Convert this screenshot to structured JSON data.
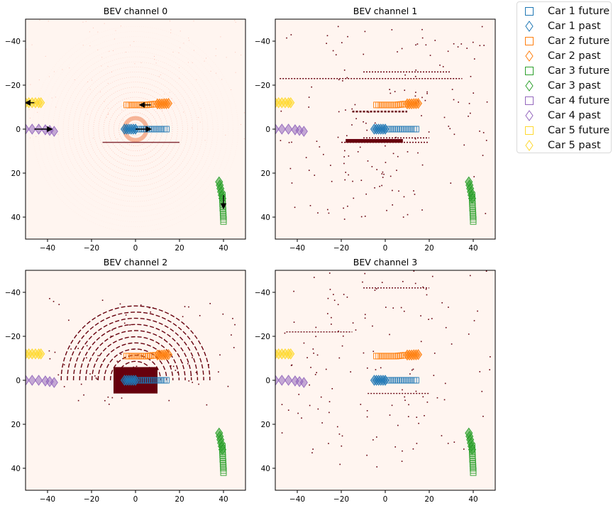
{
  "chart_data": [
    {
      "type": "scatter",
      "title": "BEV channel 0",
      "xlim": [
        -50,
        50
      ],
      "ylim": [
        -50,
        50
      ],
      "y_inverted": true,
      "xticks": [
        -40,
        -20,
        0,
        20,
        40
      ],
      "yticks": [
        -40,
        -20,
        0,
        20,
        40
      ],
      "background": "BEV occupancy heatmap (Reds colormap): concentric lidar rings around the ego car at (0, 0), bright center",
      "arrows": [
        {
          "from": [
            0,
            0
          ],
          "to": [
            7,
            0
          ]
        },
        {
          "from": [
            7,
            -11
          ],
          "to": [
            2,
            -11
          ]
        },
        {
          "from": [
            -46,
            0
          ],
          "to": [
            -38,
            0
          ]
        },
        {
          "from": [
            40,
            30
          ],
          "to": [
            40,
            36
          ]
        },
        {
          "from": [
            -46,
            -12
          ],
          "to": [
            -50,
            -12
          ]
        }
      ]
    },
    {
      "type": "scatter",
      "title": "BEV channel 1",
      "xlim": [
        -50,
        50
      ],
      "ylim": [
        -50,
        50
      ],
      "y_inverted": true,
      "xticks": [
        -40,
        -20,
        0,
        20,
        40
      ],
      "yticks": [
        -40,
        -20,
        0,
        20,
        40
      ],
      "background": "sparse dark occupancy points forming road and building edges"
    },
    {
      "type": "scatter",
      "title": "BEV channel 2",
      "xlim": [
        -50,
        50
      ],
      "ylim": [
        -50,
        50
      ],
      "y_inverted": true,
      "xticks": [
        -40,
        -20,
        0,
        20,
        40
      ],
      "yticks": [
        -40,
        -20,
        0,
        20,
        40
      ],
      "background": "dark concentric lidar ring arcs around the ego car"
    },
    {
      "type": "scatter",
      "title": "BEV channel 3",
      "xlim": [
        -50,
        50
      ],
      "ylim": [
        -50,
        50
      ],
      "y_inverted": true,
      "xticks": [
        -40,
        -20,
        0,
        20,
        40
      ],
      "yticks": [
        -40,
        -20,
        0,
        20,
        40
      ],
      "background": "sparse dark occupancy points"
    }
  ],
  "trajectories": [
    {
      "name": "Car 1",
      "color": "#1f77b4",
      "past": [
        [
          -5,
          0
        ],
        [
          -4,
          0
        ],
        [
          -3,
          0
        ],
        [
          -2,
          0
        ],
        [
          -1,
          0
        ],
        [
          0,
          0
        ]
      ],
      "future": [
        [
          1,
          0
        ],
        [
          2,
          0
        ],
        [
          3,
          0
        ],
        [
          4,
          0
        ],
        [
          5,
          0
        ],
        [
          6,
          0
        ],
        [
          7,
          0
        ],
        [
          8,
          0
        ],
        [
          9,
          0
        ],
        [
          10,
          0
        ],
        [
          11,
          0
        ],
        [
          12,
          0
        ],
        [
          13,
          0
        ],
        [
          14,
          0
        ]
      ]
    },
    {
      "name": "Car 2",
      "color": "#ff7f0e",
      "past": [
        [
          10,
          -11.5
        ],
        [
          11,
          -11.5
        ],
        [
          12,
          -11.5
        ],
        [
          13,
          -11.6
        ],
        [
          14,
          -11.6
        ],
        [
          15,
          -11.7
        ]
      ],
      "future": [
        [
          -4,
          -11
        ],
        [
          -3,
          -11
        ],
        [
          -2,
          -11
        ],
        [
          -1,
          -11
        ],
        [
          0,
          -11
        ],
        [
          1,
          -11
        ],
        [
          2,
          -11
        ],
        [
          3,
          -11
        ],
        [
          4,
          -11
        ],
        [
          5,
          -11
        ],
        [
          6,
          -11.1
        ],
        [
          7,
          -11.2
        ],
        [
          8,
          -11.3
        ],
        [
          9,
          -11.4
        ]
      ]
    },
    {
      "name": "Car 3",
      "color": "#2ca02c",
      "past": [
        [
          38,
          24
        ],
        [
          38.3,
          25.5
        ],
        [
          38.6,
          27
        ],
        [
          38.9,
          28.5
        ],
        [
          39.2,
          30
        ],
        [
          39.5,
          31.5
        ]
      ],
      "future": [
        [
          39.5,
          30
        ],
        [
          39.5,
          31
        ],
        [
          39.5,
          32
        ],
        [
          39.6,
          33
        ],
        [
          39.6,
          34
        ],
        [
          39.7,
          35
        ],
        [
          39.7,
          36
        ],
        [
          39.8,
          37
        ],
        [
          39.8,
          38
        ],
        [
          39.9,
          39
        ],
        [
          39.9,
          40
        ],
        [
          40,
          41
        ],
        [
          40,
          42
        ]
      ]
    },
    {
      "name": "Car 4",
      "color": "#9467bd",
      "past": [
        [
          -50,
          0
        ],
        [
          -47,
          0
        ],
        [
          -44,
          0
        ],
        [
          -41,
          0.3
        ],
        [
          -39,
          0.6
        ],
        [
          -37,
          1
        ]
      ],
      "future": []
    },
    {
      "name": "Car 5",
      "color": "#ffd92f",
      "past": [
        [
          -50,
          -12
        ],
        [
          -48.5,
          -12
        ],
        [
          -47,
          -12
        ],
        [
          -45.5,
          -12
        ],
        [
          -44,
          -12
        ],
        [
          -43,
          -12
        ]
      ],
      "future": []
    }
  ],
  "legend": {
    "placement": "outside-top-right",
    "entries": [
      {
        "label": "Car 1 future",
        "marker": "square",
        "color": "#1f77b4"
      },
      {
        "label": "Car 1 past",
        "marker": "diamond",
        "color": "#1f77b4"
      },
      {
        "label": "Car 2 future",
        "marker": "square",
        "color": "#ff7f0e"
      },
      {
        "label": "Car 2 past",
        "marker": "diamond",
        "color": "#ff7f0e"
      },
      {
        "label": "Car 3 future",
        "marker": "square",
        "color": "#2ca02c"
      },
      {
        "label": "Car 3 past",
        "marker": "diamond",
        "color": "#2ca02c"
      },
      {
        "label": "Car 4 future",
        "marker": "square",
        "color": "#9467bd"
      },
      {
        "label": "Car 4 past",
        "marker": "diamond",
        "color": "#9467bd"
      },
      {
        "label": "Car 5 future",
        "marker": "square",
        "color": "#ffd92f"
      },
      {
        "label": "Car 5 past",
        "marker": "diamond",
        "color": "#ffd92f"
      }
    ]
  },
  "colors": {
    "background": "#fff5f0",
    "occupied": "#67000d",
    "ring": "#fb6a4a"
  }
}
